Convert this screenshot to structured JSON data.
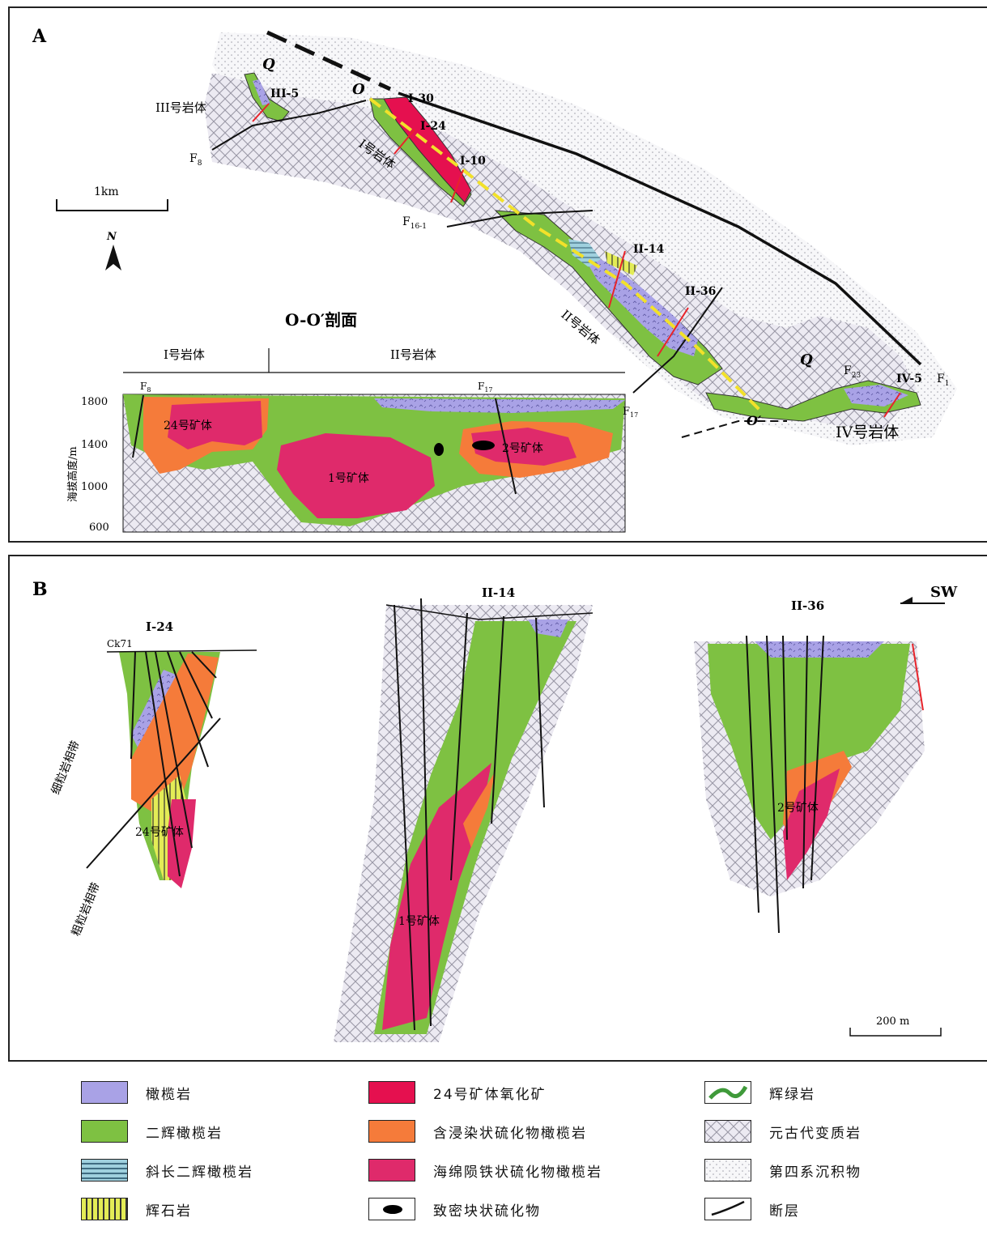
{
  "colors": {
    "olivine": "#a9a2e6",
    "lherzolite": "#7ec142",
    "plag_lherz": "#8fc3d6",
    "pyroxenite": "#e3ec56",
    "oxide_ore": "#e5104f",
    "disseminated": "#f57b3a",
    "net_ore": "#df2a6b",
    "massive": "#000000",
    "gabbro": "#3f9a3a",
    "meta": "#e6e6ef",
    "quaternary": "#f6f6f8",
    "fault": "#111111",
    "section": "#f2e12a",
    "drill_line": "#e8232a"
  },
  "panelA": {
    "letter": "A",
    "scale": "1km",
    "north": "N",
    "labels": {
      "III_body": "III号岩体",
      "I_body": "I号岩体",
      "II_body": "II号岩体",
      "IV_body": "IV号岩体",
      "Q1": "Q",
      "Q2": "Q",
      "O": "O",
      "O_prime": "O′",
      "III5": "III-5",
      "I30": "I-30",
      "I24": "I-24",
      "I10": "I-10",
      "II14": "II-14",
      "II36": "II-36",
      "IV5": "IV-5",
      "F8_main": "F",
      "F8_sub": "8",
      "F161_main": "F",
      "F161_sub": "16-1",
      "F23_main": "F",
      "F23_sub": "23",
      "F1_main": "F",
      "F1_sub": "1"
    },
    "section": {
      "title": "O-O′剖面",
      "left_body": "I号岩体",
      "right_body": "II号岩体",
      "F8_main": "F",
      "F8_sub": "8",
      "F17_main": "F",
      "F17_sub": "17",
      "F17b_main": "F",
      "F17b_sub": "17",
      "ylabel": "海拔高度/m",
      "yticks": [
        "1800",
        "1400",
        "1000",
        "600"
      ],
      "ore24": "24号矿体",
      "ore1": "1号矿体",
      "ore2": "2号矿体"
    }
  },
  "panelB": {
    "letter": "B",
    "sw": "SW",
    "scale": "200 m",
    "s1": {
      "title": "I-24",
      "ck": "Ck71",
      "fine": "细粒岩相带",
      "coarse": "粗粒岩相带",
      "ore": "24号矿体"
    },
    "s2": {
      "title": "II-14",
      "ore": "1号矿体"
    },
    "s3": {
      "title": "II-36",
      "ore": "2号矿体"
    }
  },
  "legend": [
    {
      "key": "olivine",
      "label": "橄榄岩"
    },
    {
      "key": "lherzolite",
      "label": "二辉橄榄岩"
    },
    {
      "key": "plag_lherz",
      "label": "斜长二辉橄榄岩"
    },
    {
      "key": "pyroxenite",
      "label": "辉石岩"
    },
    {
      "key": "oxide_ore",
      "label": "24号矿体氧化矿"
    },
    {
      "key": "disseminated",
      "label": "含浸染状硫化物橄榄岩"
    },
    {
      "key": "net_ore",
      "label": "海绵陨铁状硫化物橄榄岩"
    },
    {
      "key": "massive",
      "label": "致密块状硫化物"
    },
    {
      "key": "gabbro",
      "label": "辉绿岩"
    },
    {
      "key": "meta",
      "label": "元古代变质岩"
    },
    {
      "key": "quaternary",
      "label": "第四系沉积物"
    },
    {
      "key": "fault",
      "label": "断层"
    }
  ]
}
